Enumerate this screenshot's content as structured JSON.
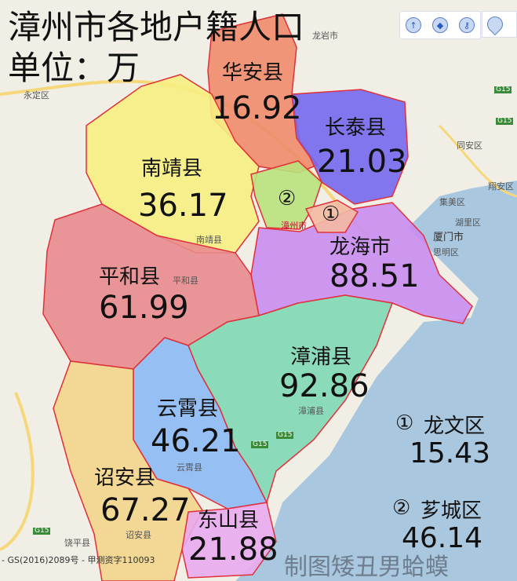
{
  "title": {
    "line1": "漳州市各地户籍人口",
    "line2": "单位：万"
  },
  "regions": [
    {
      "name": "华安县",
      "value": "16.92",
      "color": "#f08b6c"
    },
    {
      "name": "长泰县",
      "value": "21.03",
      "color": "#7668ee"
    },
    {
      "name": "南靖县",
      "value": "36.17",
      "color": "#f7ee82"
    },
    {
      "name": "龙海市",
      "value": "88.51",
      "color": "#c98cf0"
    },
    {
      "name": "平和县",
      "value": "61.99",
      "color": "#e88b8e"
    },
    {
      "name": "漳浦县",
      "value": "92.86",
      "color": "#80d8b6"
    },
    {
      "name": "云霄县",
      "value": "46.21",
      "color": "#8cb9f5"
    },
    {
      "name": "诏安县",
      "value": "67.27",
      "color": "#f3d48c"
    },
    {
      "name": "东山县",
      "value": "21.88",
      "color": "#e9aaf0"
    }
  ],
  "markers": [
    {
      "mark": "②",
      "color": "#b9e27c"
    },
    {
      "mark": "①",
      "color": "#f4b9a2"
    }
  ],
  "legend": [
    {
      "mark": "①",
      "name": "龙文区",
      "value": "15.43"
    },
    {
      "mark": "②",
      "name": "芗城区",
      "value": "46.14"
    }
  ],
  "basemap_labels": [
    "龙岩市",
    "永定区",
    "南靖县",
    "平和县",
    "漳州市",
    "漳浦县",
    "云霄县",
    "诏安县",
    "饶平县",
    "同安区",
    "翔安区",
    "集美区",
    "湖里区",
    "厦门市",
    "思明区",
    "G15",
    "G15",
    "G15",
    "G15",
    "G15"
  ],
  "toolbar": {
    "icons": [
      "arrow-up-icon",
      "china-map-icon",
      "key-icon",
      "location-pin-icon"
    ]
  },
  "copyright": "- GS(2016)2089号 - 甲测资字110093",
  "watermark": "制图矮丑男蛤蟆",
  "sea_color": "#a9c7df"
}
